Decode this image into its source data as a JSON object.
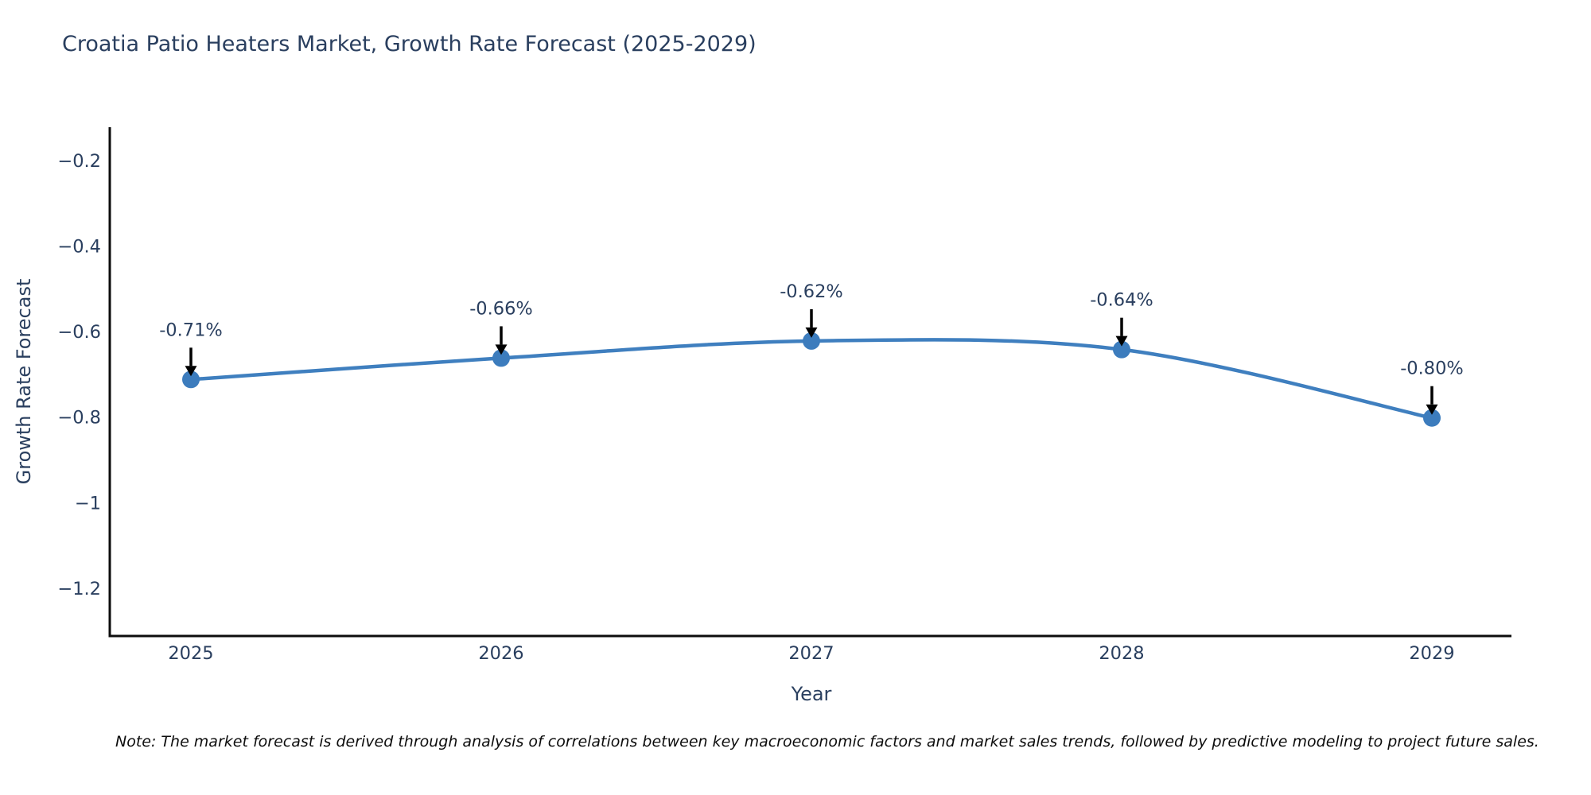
{
  "chart_data": {
    "type": "line",
    "title": "Croatia Patio Heaters Market, Growth Rate Forecast (2025-2029)",
    "xlabel": "Year",
    "ylabel": "Growth Rate Forecast",
    "categories": [
      "2025",
      "2026",
      "2027",
      "2028",
      "2029"
    ],
    "series": [
      {
        "name": "Growth Rate Forecast",
        "values": [
          -0.71,
          -0.66,
          -0.62,
          -0.64,
          -0.8
        ],
        "point_labels": [
          "-0.71%",
          "-0.66%",
          "-0.62%",
          "-0.64%",
          "-0.80%"
        ]
      }
    ],
    "ylim": [
      -1.31,
      -0.12
    ],
    "y_ticks": [
      -0.2,
      -0.4,
      -0.6,
      -0.8,
      -1,
      -1.2
    ],
    "y_tick_labels": [
      "−0.2",
      "−0.4",
      "−0.6",
      "−0.8",
      "−1",
      "−1.2"
    ],
    "grid": false,
    "legend": "none",
    "line_shape": "spline",
    "colors": {
      "line": "#3f7fbf",
      "marker": "#3c7cbd",
      "annotation_arrow": "#000000",
      "axis_line": "#0d0d0d",
      "text": "#2a3f5f"
    }
  },
  "note": {
    "text": "Note: The market forecast is derived through analysis of correlations between key macroeconomic factors and market sales trends, followed by predictive modeling to project future sales."
  }
}
